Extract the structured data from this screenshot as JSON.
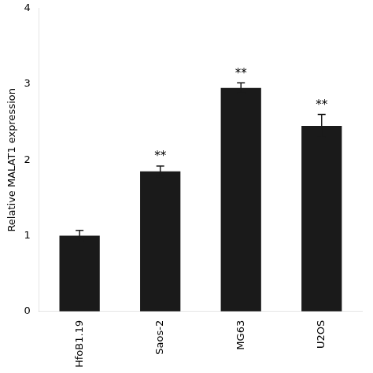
{
  "chart_data": {
    "type": "bar",
    "categories": [
      "HfoB1.19",
      "Saos-2",
      "MG63",
      "U2OS"
    ],
    "values": [
      1.0,
      1.85,
      2.95,
      2.45
    ],
    "errors": [
      0.07,
      0.07,
      0.07,
      0.15
    ],
    "color": "#1a1a1a",
    "ylabel": "Relative MALAT1 expression",
    "ylim": [
      0,
      4
    ],
    "yticks": [
      0,
      1,
      2,
      3,
      4
    ],
    "annotations": [
      {
        "x": "Saos-2",
        "text": "**"
      },
      {
        "x": "MG63",
        "text": "**"
      },
      {
        "x": "U2OS",
        "text": "**"
      }
    ],
    "grid": false
  }
}
